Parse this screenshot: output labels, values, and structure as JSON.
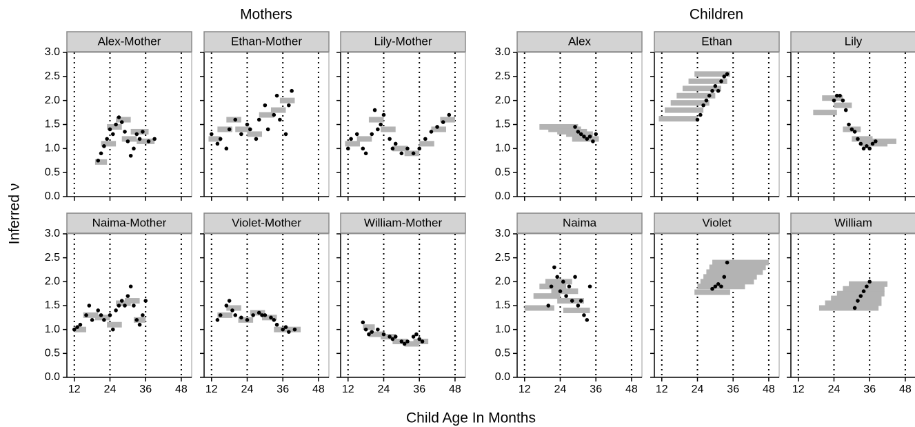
{
  "group_titles": [
    "Mothers",
    "Children"
  ],
  "y_label": "Inferred ν",
  "x_label": "Child Age In Months",
  "chart_data": [
    {
      "type": "scatter",
      "title": "Alex-Mother",
      "x": [
        20,
        21,
        22,
        23,
        24,
        25,
        26,
        27,
        28,
        29,
        30,
        31,
        32,
        33,
        34,
        35,
        37,
        39
      ],
      "values": [
        0.75,
        0.9,
        1.05,
        1.2,
        1.4,
        1.3,
        1.5,
        1.65,
        1.55,
        1.35,
        1.15,
        0.85,
        1.0,
        1.3,
        1.2,
        1.35,
        1.15,
        1.2
      ],
      "windows": {
        "x_start": [
          19,
          21,
          23,
          26,
          28,
          31,
          33
        ],
        "x_end": [
          23,
          26,
          28,
          31,
          33,
          37,
          39
        ],
        "values": [
          0.72,
          1.1,
          1.45,
          1.6,
          1.2,
          1.35,
          1.15
        ]
      },
      "xlim": [
        9.5,
        51.5
      ],
      "xticks": [
        12,
        24,
        36,
        48
      ],
      "ylim": [
        0,
        3
      ],
      "yticks": [
        {
          "value": 0,
          "label": "0.0"
        },
        {
          "value": 0.5,
          "label": "0.5"
        },
        {
          "value": 1,
          "label": "1.0"
        },
        {
          "value": 1.5,
          "label": "1.5"
        },
        {
          "value": 2,
          "label": "2.0"
        },
        {
          "value": 2.5,
          "label": "2.5"
        },
        {
          "value": 3,
          "label": "3.0"
        }
      ],
      "grid": true
    },
    {
      "type": "scatter",
      "title": "Ethan-Mother",
      "x": [
        12,
        14,
        15,
        17,
        18,
        20,
        22,
        24,
        25,
        27,
        28,
        30,
        31,
        33,
        34,
        35,
        37,
        38,
        39
      ],
      "values": [
        1.3,
        1.1,
        1.2,
        1.0,
        1.4,
        1.6,
        1.3,
        1.5,
        1.4,
        1.2,
        1.6,
        1.9,
        1.4,
        1.7,
        2.1,
        1.6,
        1.3,
        1.9,
        2.2
      ],
      "windows": {
        "x_start": [
          11,
          14,
          17,
          20,
          24,
          28,
          32,
          35
        ],
        "x_end": [
          15,
          19,
          22,
          25,
          29,
          33,
          37,
          40
        ],
        "values": [
          1.2,
          1.4,
          1.6,
          1.4,
          1.3,
          1.7,
          1.8,
          2.0
        ]
      },
      "xlim": [
        9.5,
        51.5
      ],
      "xticks": [
        12,
        24,
        36,
        48
      ],
      "ylim": [
        0,
        3
      ],
      "yticks": [
        {
          "value": 0,
          "label": "0.0"
        },
        {
          "value": 0.5,
          "label": "0.5"
        },
        {
          "value": 1,
          "label": "1.0"
        },
        {
          "value": 1.5,
          "label": "1.5"
        },
        {
          "value": 2,
          "label": "2.0"
        },
        {
          "value": 2.5,
          "label": "2.5"
        },
        {
          "value": 3,
          "label": "3.0"
        }
      ],
      "grid": true
    },
    {
      "type": "scatter",
      "title": "Lily-Mother",
      "x": [
        12,
        13,
        15,
        17,
        18,
        20,
        21,
        22,
        23,
        24,
        26,
        27,
        28,
        30,
        32,
        34,
        36,
        38,
        40,
        42,
        44,
        46
      ],
      "values": [
        1.0,
        1.2,
        1.3,
        1.0,
        0.9,
        1.3,
        1.8,
        1.4,
        1.5,
        1.7,
        1.2,
        1.0,
        1.1,
        0.9,
        1.0,
        0.9,
        1.0,
        1.2,
        1.35,
        1.45,
        1.55,
        1.7
      ],
      "windows": {
        "x_start": [
          11,
          15,
          19,
          23,
          27,
          31,
          36,
          40,
          43
        ],
        "x_end": [
          16,
          20,
          24,
          28,
          32,
          36,
          41,
          45,
          48
        ],
        "values": [
          1.1,
          1.2,
          1.6,
          1.4,
          1.0,
          0.9,
          1.1,
          1.4,
          1.6
        ]
      },
      "xlim": [
        9.5,
        51.5
      ],
      "xticks": [
        12,
        24,
        36,
        48
      ],
      "ylim": [
        0,
        3
      ],
      "yticks": [
        {
          "value": 0,
          "label": "0.0"
        },
        {
          "value": 0.5,
          "label": "0.5"
        },
        {
          "value": 1,
          "label": "1.0"
        },
        {
          "value": 1.5,
          "label": "1.5"
        },
        {
          "value": 2,
          "label": "2.0"
        },
        {
          "value": 2.5,
          "label": "2.5"
        },
        {
          "value": 3,
          "label": "3.0"
        }
      ],
      "grid": true
    },
    {
      "type": "scatter",
      "title": "Alex",
      "x": [
        29,
        30,
        31,
        32,
        33,
        34,
        35,
        36
      ],
      "values": [
        1.45,
        1.35,
        1.3,
        1.25,
        1.2,
        1.25,
        1.15,
        1.3
      ],
      "windows": {
        "x_start": [
          17,
          20,
          23,
          26,
          28
        ],
        "x_end": [
          30,
          31,
          33,
          35,
          37
        ],
        "values": [
          1.45,
          1.4,
          1.35,
          1.3,
          1.2
        ]
      },
      "xlim": [
        9.5,
        51.5
      ],
      "xticks": [
        12,
        24,
        36,
        48
      ],
      "ylim": [
        0,
        3
      ],
      "yticks": [
        {
          "value": 0,
          "label": "0.0"
        },
        {
          "value": 0.5,
          "label": "0.5"
        },
        {
          "value": 1,
          "label": "1.0"
        },
        {
          "value": 1.5,
          "label": "1.5"
        },
        {
          "value": 2,
          "label": "2.0"
        },
        {
          "value": 2.5,
          "label": "2.5"
        },
        {
          "value": 3,
          "label": "3.0"
        }
      ],
      "grid": true
    },
    {
      "type": "scatter",
      "title": "Ethan",
      "x": [
        24,
        25,
        26,
        27,
        28,
        29,
        30,
        31,
        32,
        33,
        34
      ],
      "values": [
        1.6,
        1.7,
        1.9,
        2.0,
        2.1,
        2.2,
        2.3,
        2.2,
        2.4,
        2.5,
        2.55
      ],
      "windows": {
        "x_start": [
          11,
          13,
          15,
          17,
          19,
          21,
          23
        ],
        "x_end": [
          24,
          26,
          28,
          30,
          32,
          34,
          35
        ],
        "values": [
          1.62,
          1.8,
          1.95,
          2.1,
          2.25,
          2.4,
          2.55
        ]
      },
      "xlim": [
        9.5,
        51.5
      ],
      "xticks": [
        12,
        24,
        36,
        48
      ],
      "ylim": [
        0,
        3
      ],
      "yticks": [
        {
          "value": 0,
          "label": "0.0"
        },
        {
          "value": 0.5,
          "label": "0.5"
        },
        {
          "value": 1,
          "label": "1.0"
        },
        {
          "value": 1.5,
          "label": "1.5"
        },
        {
          "value": 2,
          "label": "2.0"
        },
        {
          "value": 2.5,
          "label": "2.5"
        },
        {
          "value": 3,
          "label": "3.0"
        }
      ],
      "grid": true
    },
    {
      "type": "scatter",
      "title": "Lily",
      "x": [
        24,
        25,
        26,
        27,
        28,
        29,
        30,
        31,
        32,
        33,
        34,
        35,
        36,
        37,
        38
      ],
      "values": [
        2.0,
        2.1,
        2.1,
        2.0,
        1.8,
        1.5,
        1.4,
        1.35,
        1.2,
        1.1,
        1.0,
        1.05,
        1.0,
        1.1,
        1.15
      ],
      "windows": {
        "x_start": [
          17,
          20,
          24,
          27,
          30,
          33,
          36
        ],
        "x_end": [
          25,
          27,
          30,
          33,
          37,
          42,
          45
        ],
        "values": [
          1.75,
          2.05,
          1.9,
          1.4,
          1.2,
          1.1,
          1.15
        ]
      },
      "xlim": [
        9.5,
        51.5
      ],
      "xticks": [
        12,
        24,
        36,
        48
      ],
      "ylim": [
        0,
        3
      ],
      "yticks": [
        {
          "value": 0,
          "label": "0.0"
        },
        {
          "value": 0.5,
          "label": "0.5"
        },
        {
          "value": 1,
          "label": "1.0"
        },
        {
          "value": 1.5,
          "label": "1.5"
        },
        {
          "value": 2,
          "label": "2.0"
        },
        {
          "value": 2.5,
          "label": "2.5"
        },
        {
          "value": 3,
          "label": "3.0"
        }
      ],
      "grid": true
    },
    {
      "type": "scatter",
      "title": "Naima-Mother",
      "x": [
        12,
        13,
        14,
        16,
        17,
        18,
        20,
        21,
        22,
        24,
        25,
        26,
        27,
        28,
        29,
        30,
        31,
        32,
        33,
        34,
        35,
        36
      ],
      "values": [
        1.0,
        1.05,
        1.1,
        1.3,
        1.5,
        1.2,
        1.4,
        1.3,
        1.2,
        1.3,
        1.0,
        1.4,
        1.5,
        1.6,
        1.5,
        1.7,
        1.9,
        1.5,
        1.2,
        1.1,
        1.3,
        1.6
      ],
      "windows": {
        "x_start": [
          12,
          15,
          19,
          23,
          26,
          29,
          32
        ],
        "x_end": [
          16,
          20,
          24,
          28,
          31,
          34,
          36
        ],
        "values": [
          1.0,
          1.3,
          1.25,
          1.1,
          1.55,
          1.6,
          1.2
        ]
      },
      "xlim": [
        9.5,
        51.5
      ],
      "xticks": [
        12,
        24,
        36,
        48
      ],
      "ylim": [
        0,
        3
      ],
      "yticks": [
        {
          "value": 0,
          "label": "0.0"
        },
        {
          "value": 0.5,
          "label": "0.5"
        },
        {
          "value": 1,
          "label": "1.0"
        },
        {
          "value": 1.5,
          "label": "1.5"
        },
        {
          "value": 2,
          "label": "2.0"
        },
        {
          "value": 2.5,
          "label": "2.5"
        },
        {
          "value": 3,
          "label": "3.0"
        }
      ],
      "grid": true
    },
    {
      "type": "scatter",
      "title": "Violet-Mother",
      "x": [
        14,
        15,
        17,
        18,
        19,
        20,
        22,
        24,
        26,
        28,
        29,
        30,
        32,
        33,
        34,
        36,
        37,
        38,
        40
      ],
      "values": [
        1.2,
        1.3,
        1.5,
        1.6,
        1.4,
        1.3,
        1.25,
        1.2,
        1.3,
        1.35,
        1.3,
        1.3,
        1.25,
        1.2,
        1.1,
        1.0,
        1.05,
        0.95,
        1.0
      ],
      "windows": {
        "x_start": [
          14,
          17,
          21,
          25,
          29,
          33,
          36
        ],
        "x_end": [
          19,
          22,
          26,
          30,
          34,
          38,
          42
        ],
        "values": [
          1.3,
          1.45,
          1.2,
          1.35,
          1.25,
          1.0,
          1.0
        ]
      },
      "xlim": [
        9.5,
        51.5
      ],
      "xticks": [
        12,
        24,
        36,
        48
      ],
      "ylim": [
        0,
        3
      ],
      "yticks": [
        {
          "value": 0,
          "label": "0.0"
        },
        {
          "value": 0.5,
          "label": "0.5"
        },
        {
          "value": 1,
          "label": "1.0"
        },
        {
          "value": 1.5,
          "label": "1.5"
        },
        {
          "value": 2,
          "label": "2.0"
        },
        {
          "value": 2.5,
          "label": "2.5"
        },
        {
          "value": 3,
          "label": "3.0"
        }
      ],
      "grid": true
    },
    {
      "type": "scatter",
      "title": "William-Mother",
      "x": [
        17,
        18,
        19,
        20,
        22,
        24,
        26,
        27,
        28,
        30,
        31,
        32,
        34,
        35,
        36,
        37
      ],
      "values": [
        1.15,
        1.0,
        0.9,
        0.95,
        1.0,
        0.9,
        0.85,
        0.8,
        0.85,
        0.75,
        0.7,
        0.75,
        0.85,
        0.9,
        0.8,
        0.75
      ],
      "windows": {
        "x_start": [
          17,
          19,
          23,
          27,
          31,
          34
        ],
        "x_end": [
          21,
          24,
          28,
          32,
          36,
          39
        ],
        "values": [
          1.05,
          0.9,
          0.85,
          0.75,
          0.7,
          0.75
        ]
      },
      "xlim": [
        9.5,
        51.5
      ],
      "xticks": [
        12,
        24,
        36,
        48
      ],
      "ylim": [
        0,
        3
      ],
      "yticks": [
        {
          "value": 0,
          "label": "0.0"
        },
        {
          "value": 0.5,
          "label": "0.5"
        },
        {
          "value": 1,
          "label": "1.0"
        },
        {
          "value": 1.5,
          "label": "1.5"
        },
        {
          "value": 2,
          "label": "2.0"
        },
        {
          "value": 2.5,
          "label": "2.5"
        },
        {
          "value": 3,
          "label": "3.0"
        }
      ],
      "grid": true
    },
    {
      "type": "scatter",
      "title": "Naima",
      "x": [
        20,
        21,
        22,
        23,
        24,
        25,
        26,
        27,
        28,
        29,
        30,
        31,
        32,
        33,
        34
      ],
      "values": [
        1.5,
        1.9,
        2.3,
        2.1,
        1.8,
        2.0,
        1.7,
        1.9,
        1.6,
        2.1,
        1.5,
        1.6,
        1.3,
        1.2,
        1.9
      ],
      "windows": {
        "x_start": [
          12,
          15,
          17,
          19,
          21,
          23,
          25
        ],
        "x_end": [
          22,
          24,
          26,
          28,
          30,
          32,
          34
        ],
        "values": [
          1.45,
          1.7,
          1.9,
          2.0,
          1.8,
          1.6,
          1.4
        ]
      },
      "xlim": [
        9.5,
        51.5
      ],
      "xticks": [
        12,
        24,
        36,
        48
      ],
      "ylim": [
        0,
        3
      ],
      "yticks": [
        {
          "value": 0,
          "label": "0.0"
        },
        {
          "value": 0.5,
          "label": "0.5"
        },
        {
          "value": 1,
          "label": "1.0"
        },
        {
          "value": 1.5,
          "label": "1.5"
        },
        {
          "value": 2,
          "label": "2.0"
        },
        {
          "value": 2.5,
          "label": "2.5"
        },
        {
          "value": 3,
          "label": "3.0"
        }
      ],
      "grid": true
    },
    {
      "type": "scatter",
      "title": "Violet",
      "x": [
        29,
        30,
        31,
        32,
        33,
        34
      ],
      "values": [
        1.85,
        1.9,
        1.95,
        1.9,
        2.1,
        2.4
      ],
      "windows": {
        "x_start": [
          23,
          24,
          25,
          26,
          27,
          28,
          29
        ],
        "x_end": [
          35,
          40,
          43,
          44,
          46,
          47,
          48
        ],
        "values": [
          1.78,
          1.9,
          2.0,
          2.1,
          2.2,
          2.3,
          2.4
        ]
      },
      "xlim": [
        9.5,
        51.5
      ],
      "xticks": [
        12,
        24,
        36,
        48
      ],
      "ylim": [
        0,
        3
      ],
      "yticks": [
        {
          "value": 0,
          "label": "0.0"
        },
        {
          "value": 0.5,
          "label": "0.5"
        },
        {
          "value": 1,
          "label": "1.0"
        },
        {
          "value": 1.5,
          "label": "1.5"
        },
        {
          "value": 2,
          "label": "2.0"
        },
        {
          "value": 2.5,
          "label": "2.5"
        },
        {
          "value": 3,
          "label": "3.0"
        }
      ],
      "grid": true
    },
    {
      "type": "scatter",
      "title": "William",
      "x": [
        31,
        32,
        33,
        34,
        35,
        36
      ],
      "values": [
        1.45,
        1.6,
        1.7,
        1.8,
        1.9,
        2.0
      ],
      "windows": {
        "x_start": [
          19,
          21,
          23,
          25,
          27,
          29
        ],
        "x_end": [
          39,
          40,
          40,
          41,
          41,
          42
        ],
        "values": [
          1.45,
          1.55,
          1.65,
          1.75,
          1.85,
          1.95
        ]
      },
      "xlim": [
        9.5,
        51.5
      ],
      "xticks": [
        12,
        24,
        36,
        48
      ],
      "ylim": [
        0,
        3
      ],
      "yticks": [
        {
          "value": 0,
          "label": "0.0"
        },
        {
          "value": 0.5,
          "label": "0.5"
        },
        {
          "value": 1,
          "label": "1.0"
        },
        {
          "value": 1.5,
          "label": "1.5"
        },
        {
          "value": 2,
          "label": "2.0"
        },
        {
          "value": 2.5,
          "label": "2.5"
        },
        {
          "value": 3,
          "label": "3.0"
        }
      ],
      "grid": true
    }
  ]
}
